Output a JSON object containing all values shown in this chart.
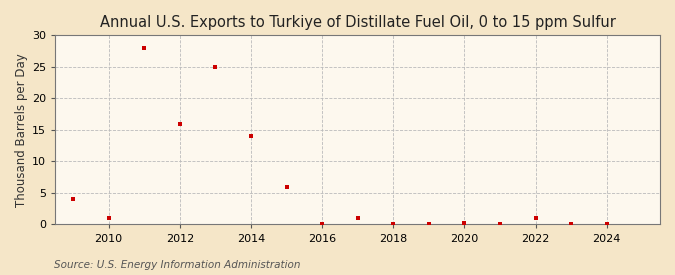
{
  "title": "Annual U.S. Exports to Turkiye of Distillate Fuel Oil, 0 to 15 ppm Sulfur",
  "ylabel": "Thousand Barrels per Day",
  "source": "Source: U.S. Energy Information Administration",
  "background_color": "#f5e6c8",
  "plot_background_color": "#fdf8ee",
  "marker_color": "#cc0000",
  "grid_color": "#bbbbbb",
  "years": [
    2009,
    2010,
    2011,
    2012,
    2013,
    2014,
    2015,
    2016,
    2017,
    2018,
    2019,
    2020,
    2021,
    2022,
    2023,
    2024
  ],
  "values": [
    4.0,
    1.0,
    28.0,
    16.0,
    25.0,
    14.0,
    6.0,
    0.15,
    1.0,
    0.15,
    0.15,
    0.3,
    0.15,
    1.0,
    0.15,
    0.15
  ],
  "ylim": [
    0,
    30
  ],
  "yticks": [
    0,
    5,
    10,
    15,
    20,
    25,
    30
  ],
  "xlim": [
    2008.5,
    2025.5
  ],
  "xticks": [
    2010,
    2012,
    2014,
    2016,
    2018,
    2020,
    2022,
    2024
  ],
  "title_fontsize": 10.5,
  "label_fontsize": 8.5,
  "tick_fontsize": 8,
  "source_fontsize": 7.5
}
